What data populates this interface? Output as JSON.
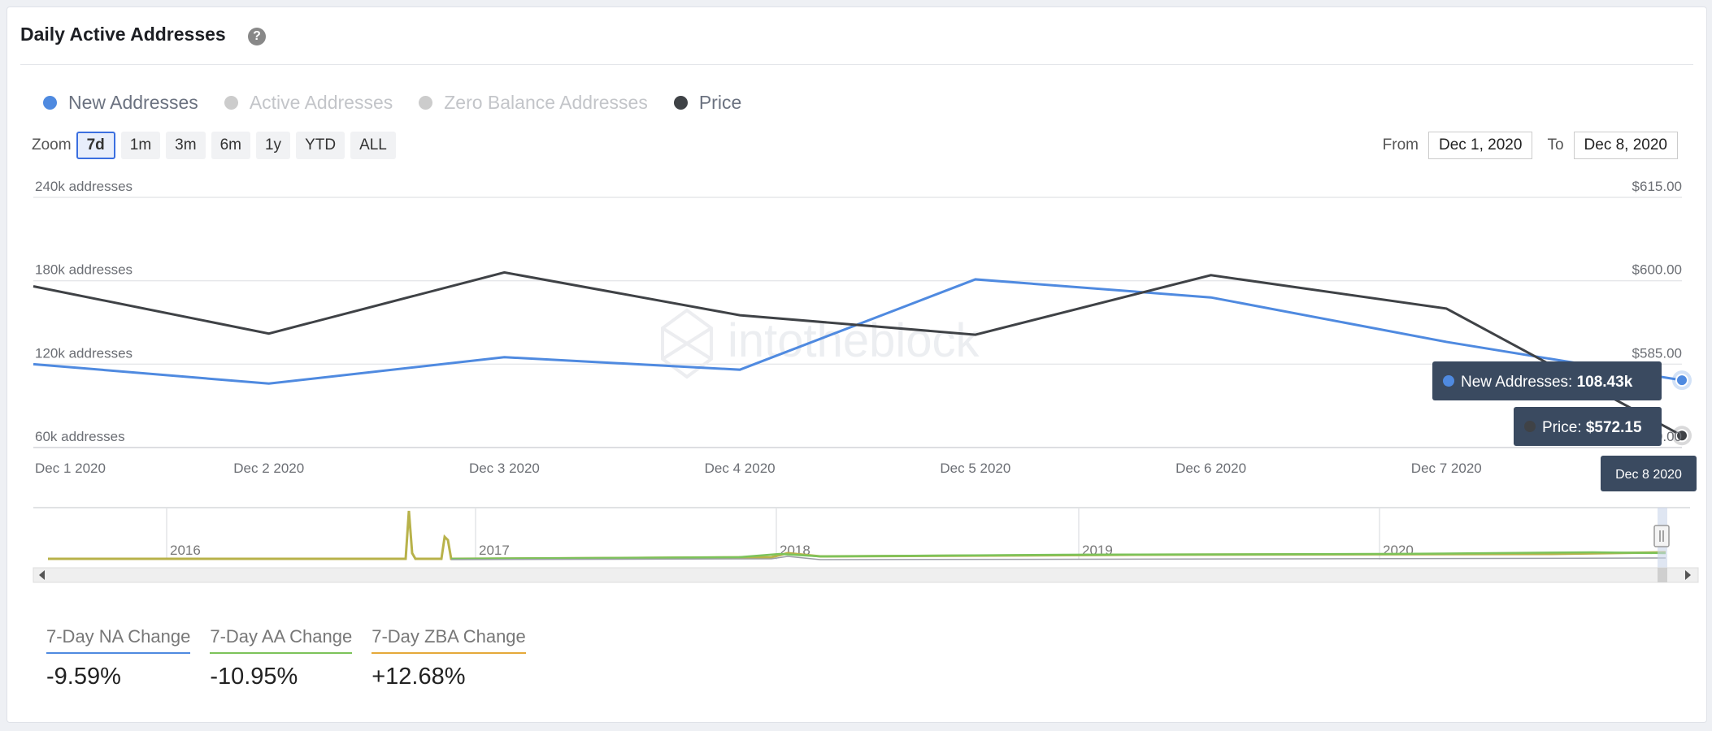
{
  "header": {
    "title": "Daily Active Addresses",
    "help_icon": "question-circle-icon",
    "help_glyph": "?"
  },
  "legend": [
    {
      "label": "New Addresses",
      "color": "#4f8ae0",
      "state": "on"
    },
    {
      "label": "Active Addresses",
      "color": "#cccccc",
      "state": "off"
    },
    {
      "label": "Zero Balance Addresses",
      "color": "#cccccc",
      "state": "off"
    },
    {
      "label": "Price",
      "color": "#3f4246",
      "state": "on"
    }
  ],
  "zoom": {
    "label": "Zoom",
    "buttons": [
      "7d",
      "1m",
      "3m",
      "6m",
      "1y",
      "YTD",
      "ALL"
    ],
    "active": "7d"
  },
  "range": {
    "from_label": "From",
    "from": "Dec 1, 2020",
    "to_label": "To",
    "to": "Dec 8, 2020"
  },
  "chart_data": {
    "type": "line",
    "x": [
      "Dec 1 2020",
      "Dec 2 2020",
      "Dec 3 2020",
      "Dec 4 2020",
      "Dec 5 2020",
      "Dec 6 2020",
      "Dec 7 2020",
      "Dec 8 2020"
    ],
    "series": [
      {
        "name": "New Addresses",
        "axis": "left",
        "color": "#4f8ae0",
        "values": [
          120000,
          106000,
          125000,
          116000,
          181000,
          168000,
          136000,
          108430
        ]
      },
      {
        "name": "Price",
        "axis": "right",
        "color": "#3f4246",
        "values": [
          599.0,
          590.5,
          601.5,
          593.8,
          590.3,
          601.0,
          595.0,
          572.15
        ]
      }
    ],
    "y_left": {
      "ticks": [
        "240k addresses",
        "180k addresses",
        "120k addresses",
        "60k addresses"
      ],
      "tick_values": [
        240000,
        180000,
        120000,
        60000
      ],
      "range": [
        60000,
        240000
      ]
    },
    "y_right": {
      "ticks": [
        "$615.00",
        "$600.00",
        "$585.00",
        "$570.00"
      ],
      "tick_values": [
        615,
        600,
        585,
        570
      ],
      "range": [
        570,
        615
      ]
    },
    "tooltip": {
      "new_label": "New Addresses:",
      "new_value": "108.43k",
      "price_label": "Price:",
      "price_value": "$572.15",
      "date": "Dec 8 2020"
    },
    "navigator": {
      "years": [
        "2016",
        "2017",
        "2018",
        "2019",
        "2020"
      ]
    },
    "watermark": "intotheblock",
    "grid": true
  },
  "stats": [
    {
      "label": "7-Day NA Change",
      "value": "-9.59%",
      "color": "#4f8ae0"
    },
    {
      "label": "7-Day AA Change",
      "value": "-10.95%",
      "color": "#7cc35a"
    },
    {
      "label": "7-Day ZBA Change",
      "value": "+12.68%",
      "color": "#e5a93a"
    }
  ]
}
